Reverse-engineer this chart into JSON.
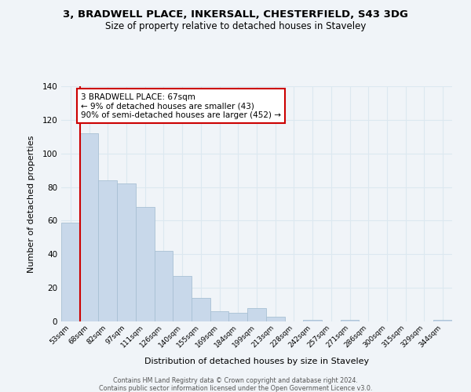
{
  "title": "3, BRADWELL PLACE, INKERSALL, CHESTERFIELD, S43 3DG",
  "subtitle": "Size of property relative to detached houses in Staveley",
  "xlabel": "Distribution of detached houses by size in Staveley",
  "ylabel": "Number of detached properties",
  "bar_labels": [
    "53sqm",
    "68sqm",
    "82sqm",
    "97sqm",
    "111sqm",
    "126sqm",
    "140sqm",
    "155sqm",
    "169sqm",
    "184sqm",
    "199sqm",
    "213sqm",
    "228sqm",
    "242sqm",
    "257sqm",
    "271sqm",
    "286sqm",
    "300sqm",
    "315sqm",
    "329sqm",
    "344sqm"
  ],
  "bar_heights": [
    59,
    112,
    84,
    82,
    68,
    42,
    27,
    14,
    6,
    5,
    8,
    3,
    0,
    1,
    0,
    1,
    0,
    0,
    0,
    0,
    1
  ],
  "bar_color": "#c8d8ea",
  "bar_edge_color": "#a8c0d4",
  "vline_x": 0.5,
  "vline_color": "#cc0000",
  "annotation_text": "3 BRADWELL PLACE: 67sqm\n← 9% of detached houses are smaller (43)\n90% of semi-detached houses are larger (452) →",
  "annotation_box_color": "#ffffff",
  "annotation_box_edge": "#cc0000",
  "ylim": [
    0,
    140
  ],
  "yticks": [
    0,
    20,
    40,
    60,
    80,
    100,
    120,
    140
  ],
  "background_color": "#f0f4f8",
  "grid_color": "#dce8f0",
  "footer1": "Contains HM Land Registry data © Crown copyright and database right 2024.",
  "footer2": "Contains public sector information licensed under the Open Government Licence v3.0."
}
